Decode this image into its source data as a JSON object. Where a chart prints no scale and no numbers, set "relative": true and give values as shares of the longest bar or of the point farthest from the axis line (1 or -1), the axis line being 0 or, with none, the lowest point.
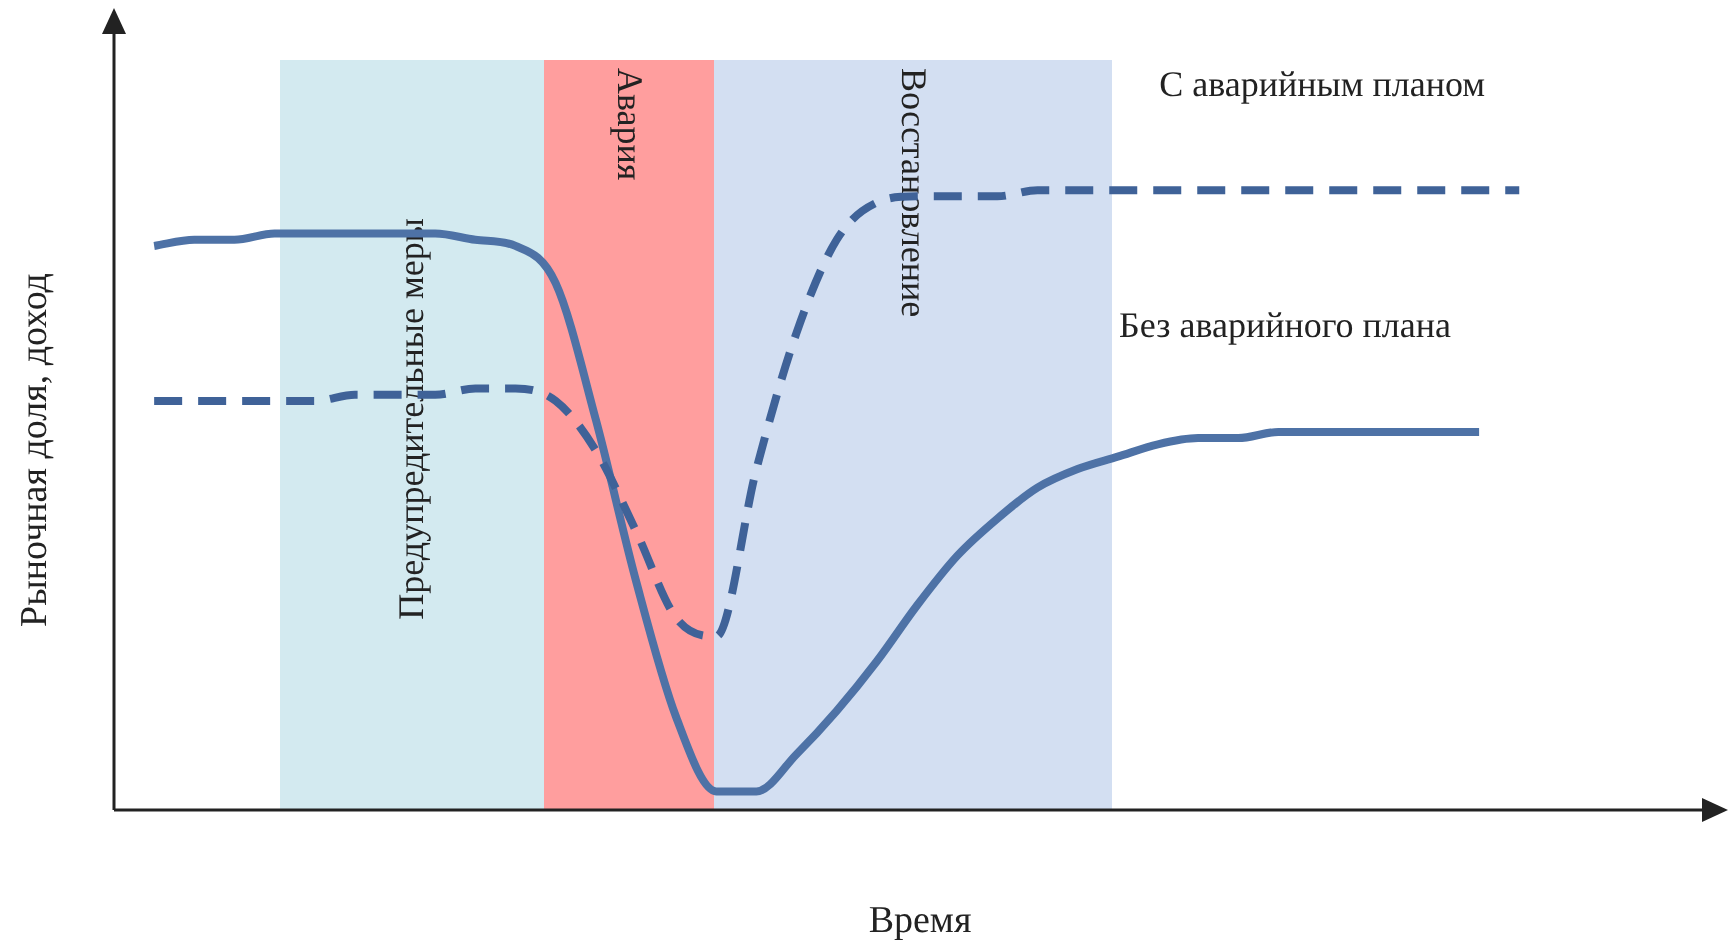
{
  "chart_data": {
    "type": "line",
    "relative": true,
    "xlabel": "Время",
    "ylabel": "Рыночная доля, доход",
    "tick_labels": false,
    "grid": false,
    "legend": false,
    "marker": "none",
    "categories": [
      null,
      null,
      null,
      null,
      null,
      null,
      null,
      null,
      null,
      null,
      null,
      null,
      null,
      null,
      null,
      null,
      null,
      null,
      null,
      null,
      null,
      null,
      null,
      null,
      null,
      null,
      null,
      null,
      null,
      null,
      null,
      null,
      null,
      null,
      null,
      null,
      null,
      null,
      null,
      null,
      null
    ],
    "annotations": [
      "Предупредительные меры",
      "Авария",
      "Восстановление"
    ],
    "series": [
      {
        "name": "С аварийным планом",
        "color": "#3f6298",
        "line_style": "dashed",
        "values": [
          null,
          0.66,
          0.66,
          0.66,
          0.66,
          0.66,
          0.67,
          0.67,
          0.67,
          0.68,
          0.68,
          0.66,
          0.58,
          0.45,
          0.31,
          0.28,
          0.55,
          0.77,
          0.92,
          0.98,
          0.99,
          0.99,
          0.99,
          1.0,
          1.0,
          1.0,
          1.0,
          1.0,
          1.0,
          1.0,
          1.0,
          1.0,
          1.0,
          1.0,
          1.0,
          1.0,
          null,
          null,
          null,
          null,
          null
        ]
      },
      {
        "name": "Без аварийного плана",
        "color": "#4e72a6",
        "line_style": "solid",
        "values": [
          null,
          0.91,
          0.92,
          0.92,
          0.93,
          0.93,
          0.93,
          0.93,
          0.93,
          0.92,
          0.91,
          0.85,
          0.63,
          0.37,
          0.15,
          0.03,
          0.03,
          0.09,
          0.16,
          0.24,
          0.33,
          0.41,
          0.47,
          0.52,
          0.55,
          0.57,
          0.59,
          0.6,
          0.6,
          0.61,
          0.61,
          0.61,
          0.61,
          0.61,
          0.61,
          null,
          null,
          null,
          null,
          null,
          null
        ]
      }
    ]
  }
}
